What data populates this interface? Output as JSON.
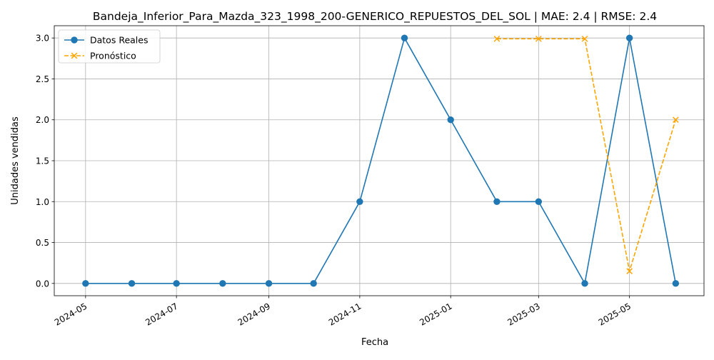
{
  "chart_data": {
    "type": "line",
    "title": "Bandeja_Inferior_Para_Mazda_323_1998_200-GENERICO_REPUESTOS_DEL_SOL | MAE: 2.4 | RMSE: 2.4",
    "xlabel": "Fecha",
    "ylabel": "Unidades vendidas",
    "ylim": [
      -0.15,
      3.15
    ],
    "xlim": [
      "2024-04-10",
      "2025-06-20"
    ],
    "grid": true,
    "legend_position": "top-left",
    "x_ticks": [
      {
        "date": "2024-05-01",
        "label": "2024-05"
      },
      {
        "date": "2024-07-01",
        "label": "2024-07"
      },
      {
        "date": "2024-09-01",
        "label": "2024-09"
      },
      {
        "date": "2024-11-01",
        "label": "2024-11"
      },
      {
        "date": "2025-01-01",
        "label": "2025-01"
      },
      {
        "date": "2025-03-01",
        "label": "2025-03"
      },
      {
        "date": "2025-05-01",
        "label": "2025-05"
      }
    ],
    "y_ticks": [
      0.0,
      0.5,
      1.0,
      1.5,
      2.0,
      2.5,
      3.0
    ],
    "y_tick_labels": [
      "0.0",
      "0.5",
      "1.0",
      "1.5",
      "2.0",
      "2.5",
      "3.0"
    ],
    "series": [
      {
        "name": "Datos Reales",
        "color": "#1f77b4",
        "marker": "circle",
        "line_style": "solid",
        "x": [
          "2024-05-01",
          "2024-06-01",
          "2024-07-01",
          "2024-08-01",
          "2024-09-01",
          "2024-10-01",
          "2024-11-01",
          "2024-12-01",
          "2025-01-01",
          "2025-02-01",
          "2025-03-01",
          "2025-04-01",
          "2025-05-01",
          "2025-06-01"
        ],
        "values": [
          0,
          0,
          0,
          0,
          0,
          0,
          1,
          3,
          2,
          1,
          1,
          0,
          3,
          0
        ]
      },
      {
        "name": "Pronóstico",
        "color": "#ffa500",
        "marker": "x",
        "line_style": "dashed",
        "x": [
          "2025-02-01",
          "2025-03-01",
          "2025-04-01",
          "2025-05-01",
          "2025-06-01"
        ],
        "values": [
          2.99,
          2.99,
          2.99,
          0.15,
          2.0
        ]
      }
    ]
  }
}
